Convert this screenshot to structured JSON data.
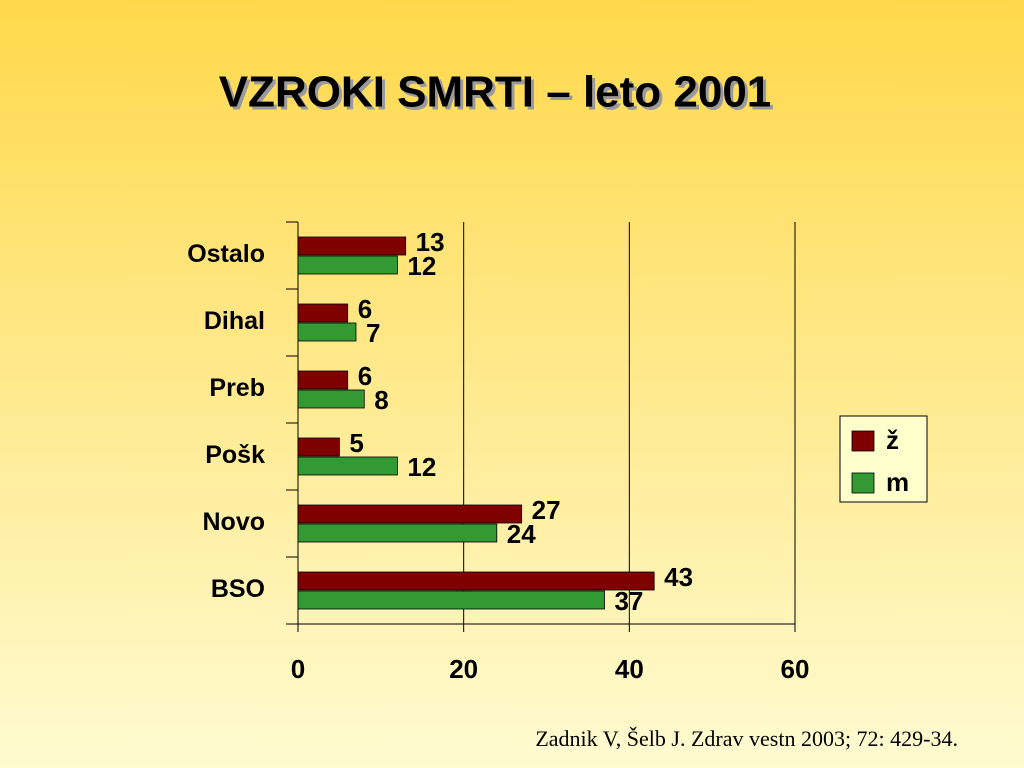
{
  "chart_data": {
    "type": "bar",
    "orientation": "horizontal",
    "title": "VZROKI  SMRTI – leto 2001",
    "categories": [
      "Ostalo",
      "Dihal",
      "Preb",
      "Pošk",
      "Novo",
      "BSO"
    ],
    "series": [
      {
        "name": "ž",
        "color": "#800000",
        "values": [
          13,
          6,
          6,
          5,
          27,
          43
        ]
      },
      {
        "name": "m",
        "color": "#339933",
        "values": [
          12,
          7,
          8,
          12,
          24,
          37
        ]
      }
    ],
    "xlim": [
      0,
      60
    ],
    "xticks": [
      0,
      20,
      40,
      60
    ],
    "grid": true,
    "legend": "right",
    "source": "Zadnik V, Šelb J. Zdrav vestn 2003; 72: 429-34."
  }
}
